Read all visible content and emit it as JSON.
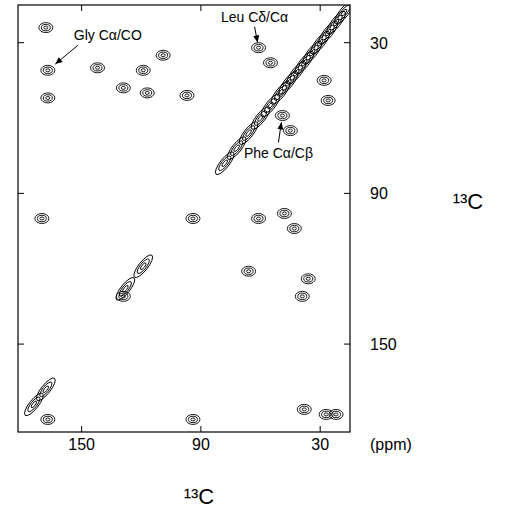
{
  "chart_data": {
    "type": "contour",
    "x_label": "¹³C",
    "y_label": "¹³C",
    "unit_label": "(ppm)",
    "xlim": [
      182,
      15
    ],
    "ylim": [
      15,
      185
    ],
    "xticks": [
      150,
      90,
      30
    ],
    "yticks": [
      30,
      90,
      150
    ],
    "color": "#000000",
    "grid": false,
    "peaks": {
      "x": [
        168,
        167,
        167,
        142,
        129,
        119,
        117,
        109,
        97,
        61,
        55,
        49,
        45,
        28,
        26,
        170,
        94,
        61,
        48,
        43,
        129,
        66,
        39,
        36,
        167,
        94,
        38,
        27,
        22
      ],
      "y": [
        24,
        41,
        52,
        40,
        48,
        41,
        50,
        35,
        51,
        32,
        38,
        59,
        65,
        45,
        53,
        100,
        100,
        100,
        98,
        104,
        131,
        121,
        131,
        124,
        180,
        180,
        176,
        178,
        178
      ]
    },
    "diagonal": {
      "x": [
        18,
        22,
        26,
        30,
        34,
        38,
        42,
        46,
        50,
        55,
        60,
        66,
        72,
        78,
        119,
        128,
        168,
        174
      ],
      "y": [
        18,
        22,
        26,
        30,
        34,
        38,
        42,
        46,
        50,
        55,
        60,
        66,
        72,
        78,
        119,
        128,
        168,
        174
      ]
    },
    "annotations": [
      {
        "text": "Gly Cα/CO",
        "x": 167,
        "y": 41
      },
      {
        "text": "Leu Cδ/Cα",
        "x": 61,
        "y": 32
      },
      {
        "text": "Phe Cα/Cβ",
        "x": 49,
        "y": 59
      }
    ]
  }
}
